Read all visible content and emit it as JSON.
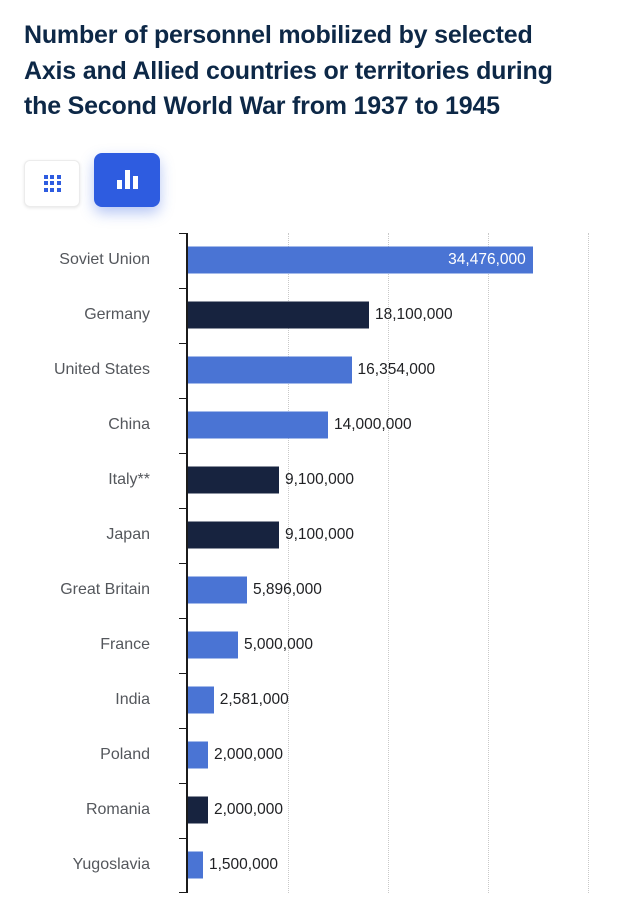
{
  "page": {
    "title_full": "Number of personnel mobilized by selected Axis and Allied countries or territories during the Second World War from 1937 to 1945",
    "title_lines": [
      "Number of personnel mobilized by selected",
      "Axis and Allied countries or territories during",
      "the Second World War from 1937 to 1945"
    ]
  },
  "toolbar": {
    "buttons": [
      {
        "name": "table-view",
        "icon": "grid-icon",
        "active": false
      },
      {
        "name": "chart-view",
        "icon": "bar-chart-icon",
        "active": true
      }
    ]
  },
  "colors": {
    "allied_bar": "#4a74d4",
    "axis_bar": "#17233f",
    "accent_blue": "#2e5ce0",
    "title_text": "#0d2847",
    "category_label": "#54575c",
    "value_label": "#202124",
    "gridline": "#c9c9c9",
    "axis_line": "#1b1b1b"
  },
  "chart_data": {
    "type": "bar",
    "orientation": "horizontal",
    "title": "Number of personnel mobilized by selected Axis and Allied countries or territories during the Second World War from 1937 to 1945",
    "categories": [
      "Soviet Union",
      "Germany",
      "United States",
      "China",
      "Italy**",
      "Japan",
      "Great Britain",
      "France",
      "India",
      "Poland",
      "Romania",
      "Yugoslavia"
    ],
    "values": [
      34476000,
      18100000,
      16354000,
      14000000,
      9100000,
      9100000,
      5896000,
      5000000,
      2581000,
      2000000,
      2000000,
      1500000
    ],
    "value_labels": [
      "34,476,000",
      "18,100,000",
      "16,354,000",
      "14,000,000",
      "9,100,000",
      "9,100,000",
      "5,896,000",
      "5,000,000",
      "2,581,000",
      "2,000,000",
      "2,000,000",
      "1,500,000"
    ],
    "groups": [
      "allied",
      "axis",
      "allied",
      "allied",
      "axis",
      "axis",
      "allied",
      "allied",
      "allied",
      "allied",
      "axis",
      "allied"
    ],
    "label_inside": [
      true,
      false,
      false,
      false,
      false,
      false,
      false,
      false,
      false,
      false,
      false,
      false
    ],
    "xlabel": "",
    "ylabel": "",
    "xlim": [
      0,
      44000000
    ],
    "gridline_values": [
      10000000,
      20000000,
      30000000,
      40000000
    ],
    "grid": "dotted-vertical",
    "legend": "none"
  }
}
